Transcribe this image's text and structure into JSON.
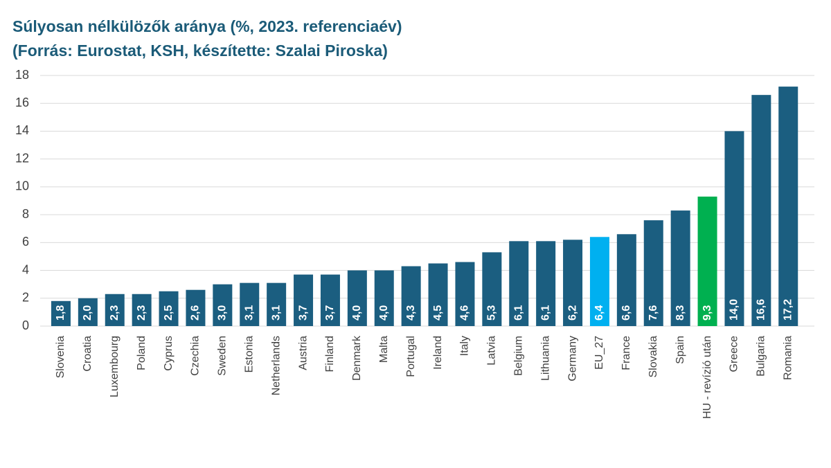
{
  "chart_data": {
    "type": "bar",
    "title": "Súlyosan nélkülözők aránya  (%, 2023. referenciaév)",
    "subtitle": "(Forrás: Eurostat, KSH, készítette: Szalai Piroska)",
    "categories": [
      "Slovenia",
      "Croatia",
      "Luxembourg",
      "Poland",
      "Cyprus",
      "Czechia",
      "Sweden",
      "Estonia",
      "Netherlands",
      "Austria",
      "Finland",
      "Denmark",
      "Malta",
      "Portugal",
      "Ireland",
      "Italy",
      "Latvia",
      "Belgium",
      "Lithuania",
      "Germany",
      "EU_27",
      "France",
      "Slovakia",
      "Spain",
      "HU - revízió után",
      "Greece",
      "Bulgaria",
      "Romania"
    ],
    "values": [
      1.8,
      2.0,
      2.3,
      2.3,
      2.5,
      2.6,
      3.0,
      3.1,
      3.1,
      3.7,
      3.7,
      4.0,
      4.0,
      4.3,
      4.5,
      4.6,
      5.3,
      6.1,
      6.1,
      6.2,
      6.4,
      6.6,
      7.6,
      8.3,
      9.3,
      14.0,
      16.6,
      17.2
    ],
    "value_labels": [
      "1,8",
      "2,0",
      "2,3",
      "2,3",
      "2,5",
      "2,6",
      "3,0",
      "3,1",
      "3,1",
      "3,7",
      "3,7",
      "4,0",
      "4,0",
      "4,3",
      "4,5",
      "4,6",
      "5,3",
      "6,1",
      "6,1",
      "6,2",
      "6,4",
      "6,6",
      "7,6",
      "8,3",
      "9,3",
      "14,0",
      "16,6",
      "17,2"
    ],
    "colors": [
      "#1b5e80",
      "#1b5e80",
      "#1b5e80",
      "#1b5e80",
      "#1b5e80",
      "#1b5e80",
      "#1b5e80",
      "#1b5e80",
      "#1b5e80",
      "#1b5e80",
      "#1b5e80",
      "#1b5e80",
      "#1b5e80",
      "#1b5e80",
      "#1b5e80",
      "#1b5e80",
      "#1b5e80",
      "#1b5e80",
      "#1b5e80",
      "#1b5e80",
      "#00b0f0",
      "#1b5e80",
      "#1b5e80",
      "#1b5e80",
      "#00b050",
      "#1b5e80",
      "#1b5e80",
      "#1b5e80"
    ],
    "ylim": [
      0,
      18
    ],
    "yticks": [
      0,
      2,
      4,
      6,
      8,
      10,
      12,
      14,
      16,
      18
    ],
    "grid": true
  }
}
